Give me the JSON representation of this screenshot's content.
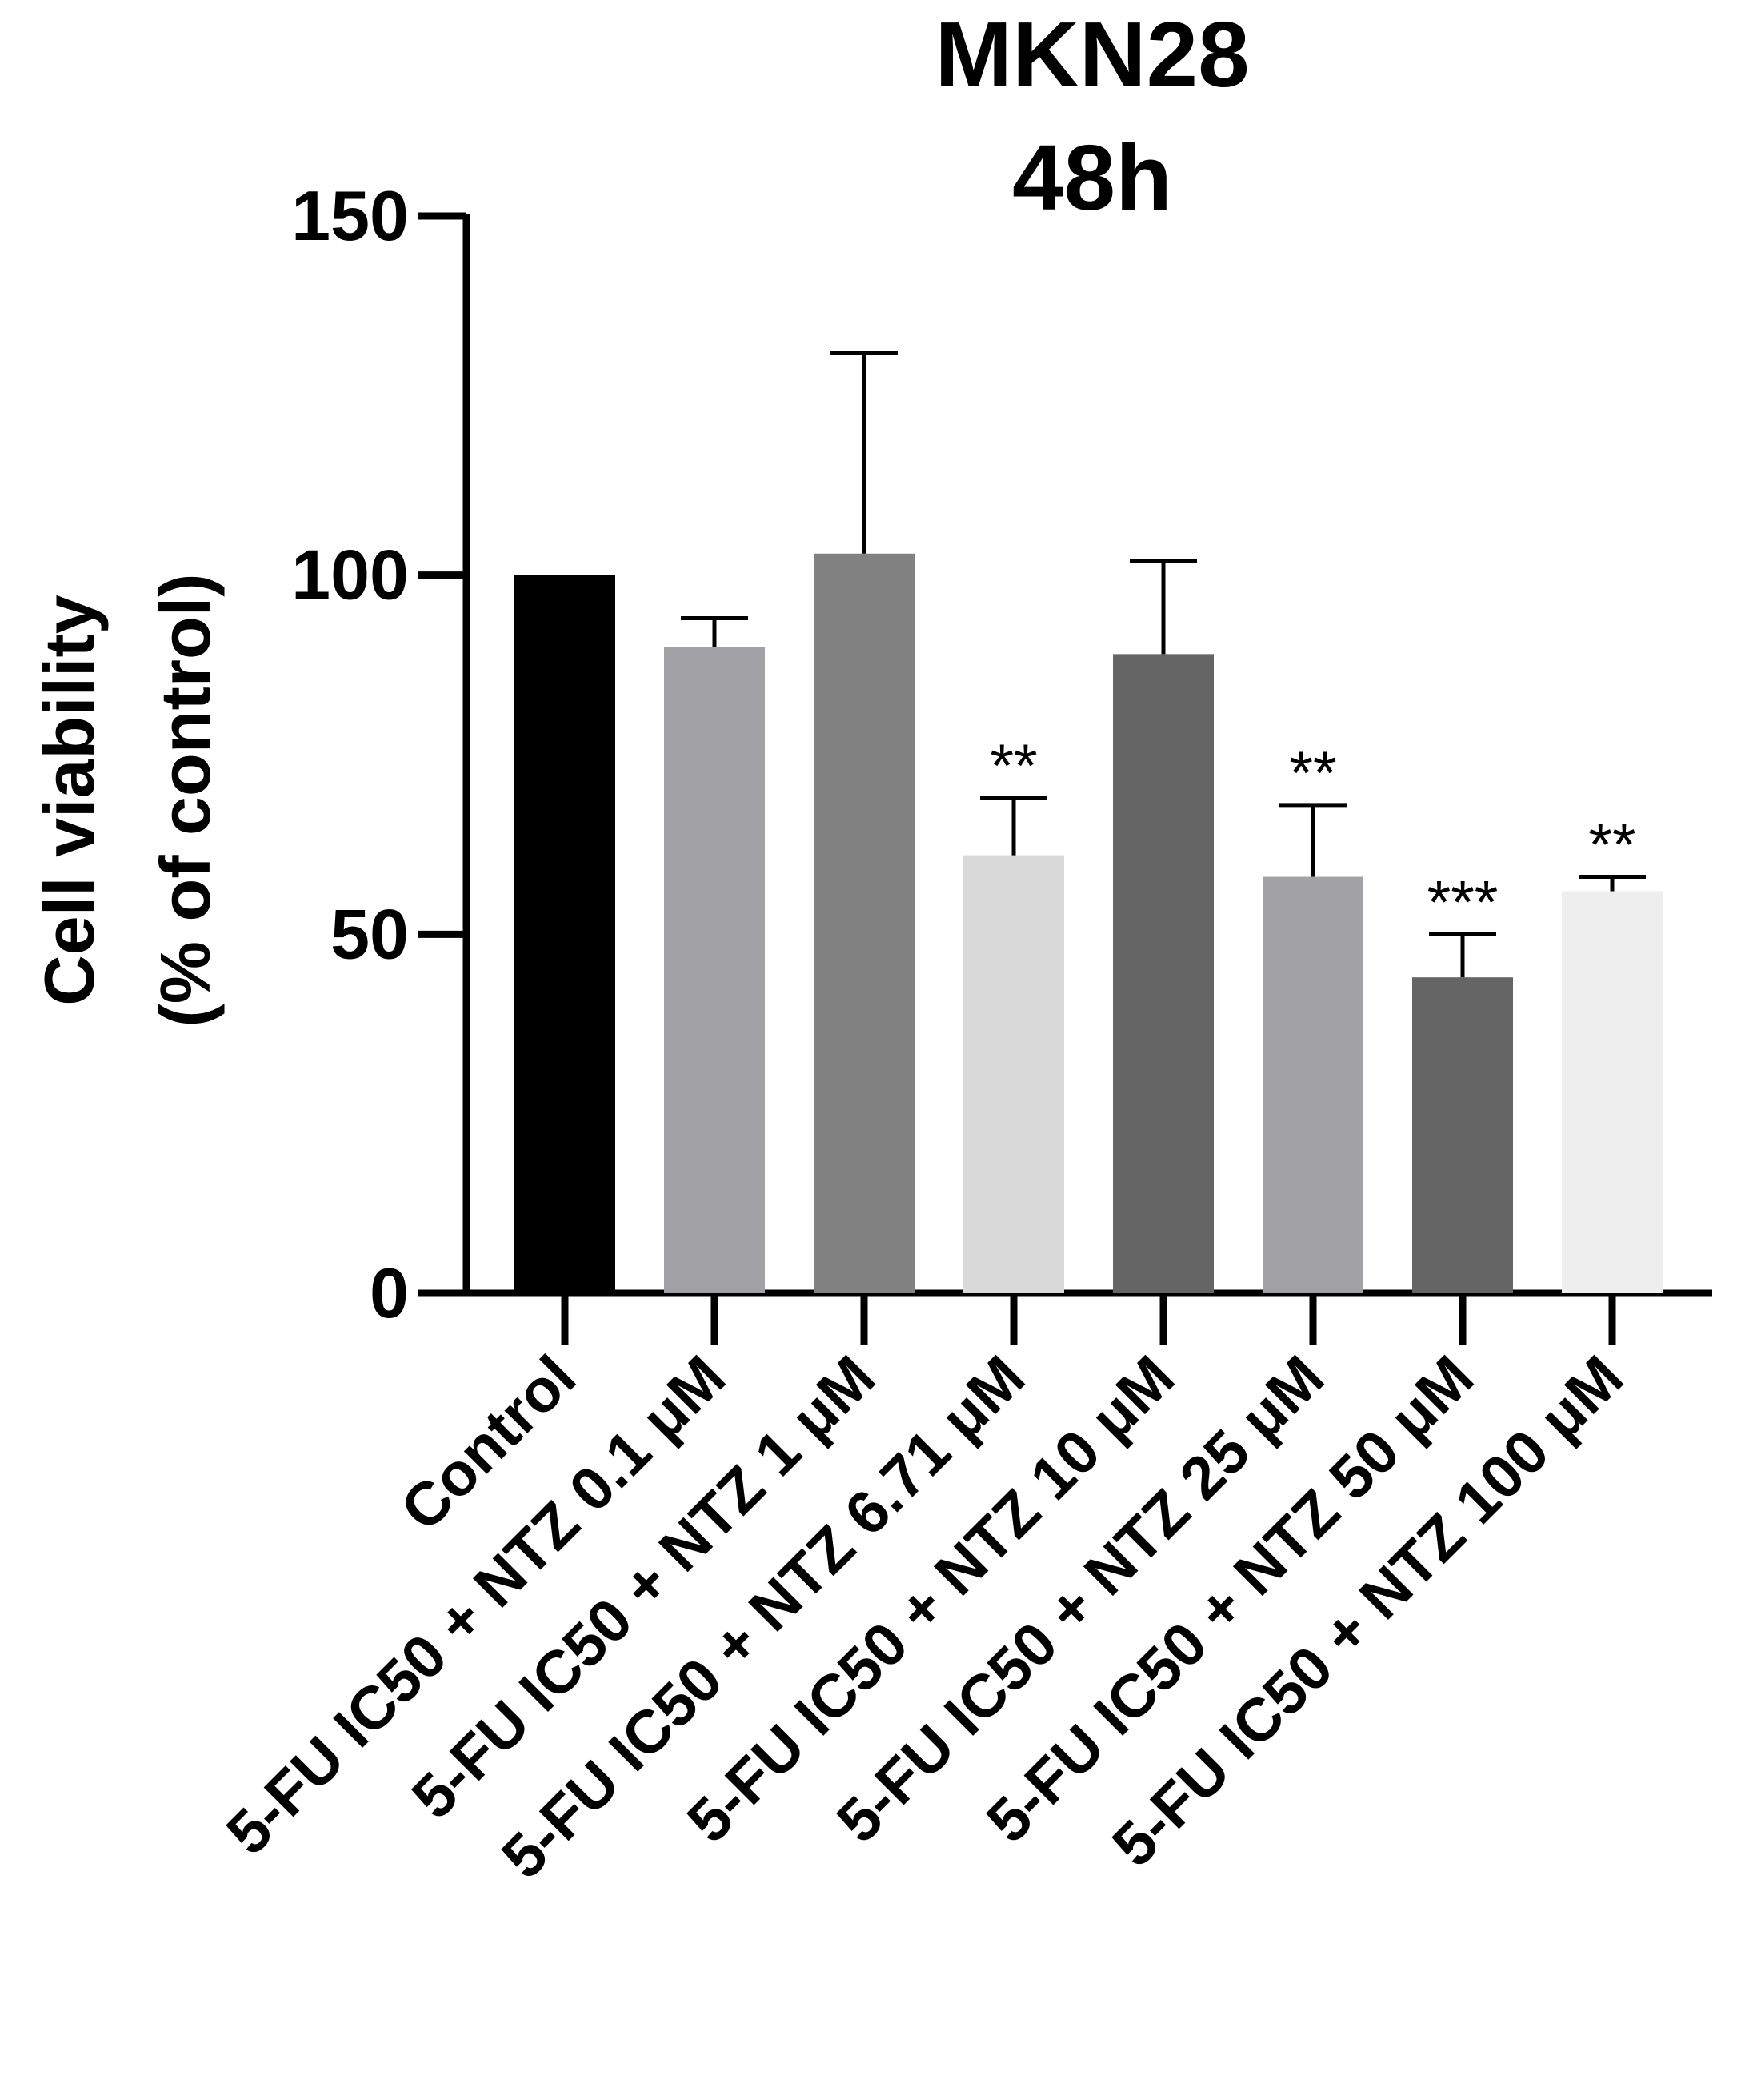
{
  "chart_data": {
    "type": "bar",
    "title": [
      "MKN28",
      "48h"
    ],
    "xlabel": "",
    "ylabel": [
      "Cell viability",
      "(% of control)"
    ],
    "ylim": [
      0,
      150
    ],
    "yticks": [
      0,
      50,
      100,
      150
    ],
    "ytick_labels": [
      "0",
      "50",
      "100",
      "150"
    ],
    "grid": false,
    "legend": "none",
    "categories": [
      "Control",
      "5-FU IC50 + NTZ 0.1 μM",
      "5-FU IC50 + NTZ 1 μM",
      "5-FU IC50 + NTZ 6.71 μM",
      "5-FU IC50 + NTZ 10 μM",
      "5-FU IC50 + NTZ 25 μM",
      "5-FU IC50 + NTZ 50 μM",
      "5-FU IC50 + NTZ 100 μM"
    ],
    "values": [
      100,
      90,
      103,
      61,
      89,
      58,
      44,
      56
    ],
    "error_upper": [
      0,
      4,
      28,
      8,
      13,
      10,
      6,
      2
    ],
    "significance": [
      "",
      "",
      "",
      "**",
      "",
      "**",
      "***",
      "**"
    ],
    "colors": [
      "#000000",
      "#a2a1a6",
      "#828282",
      "#d9d9d9",
      "#656565",
      "#a2a1a6",
      "#656565",
      "#eeeeee"
    ]
  }
}
